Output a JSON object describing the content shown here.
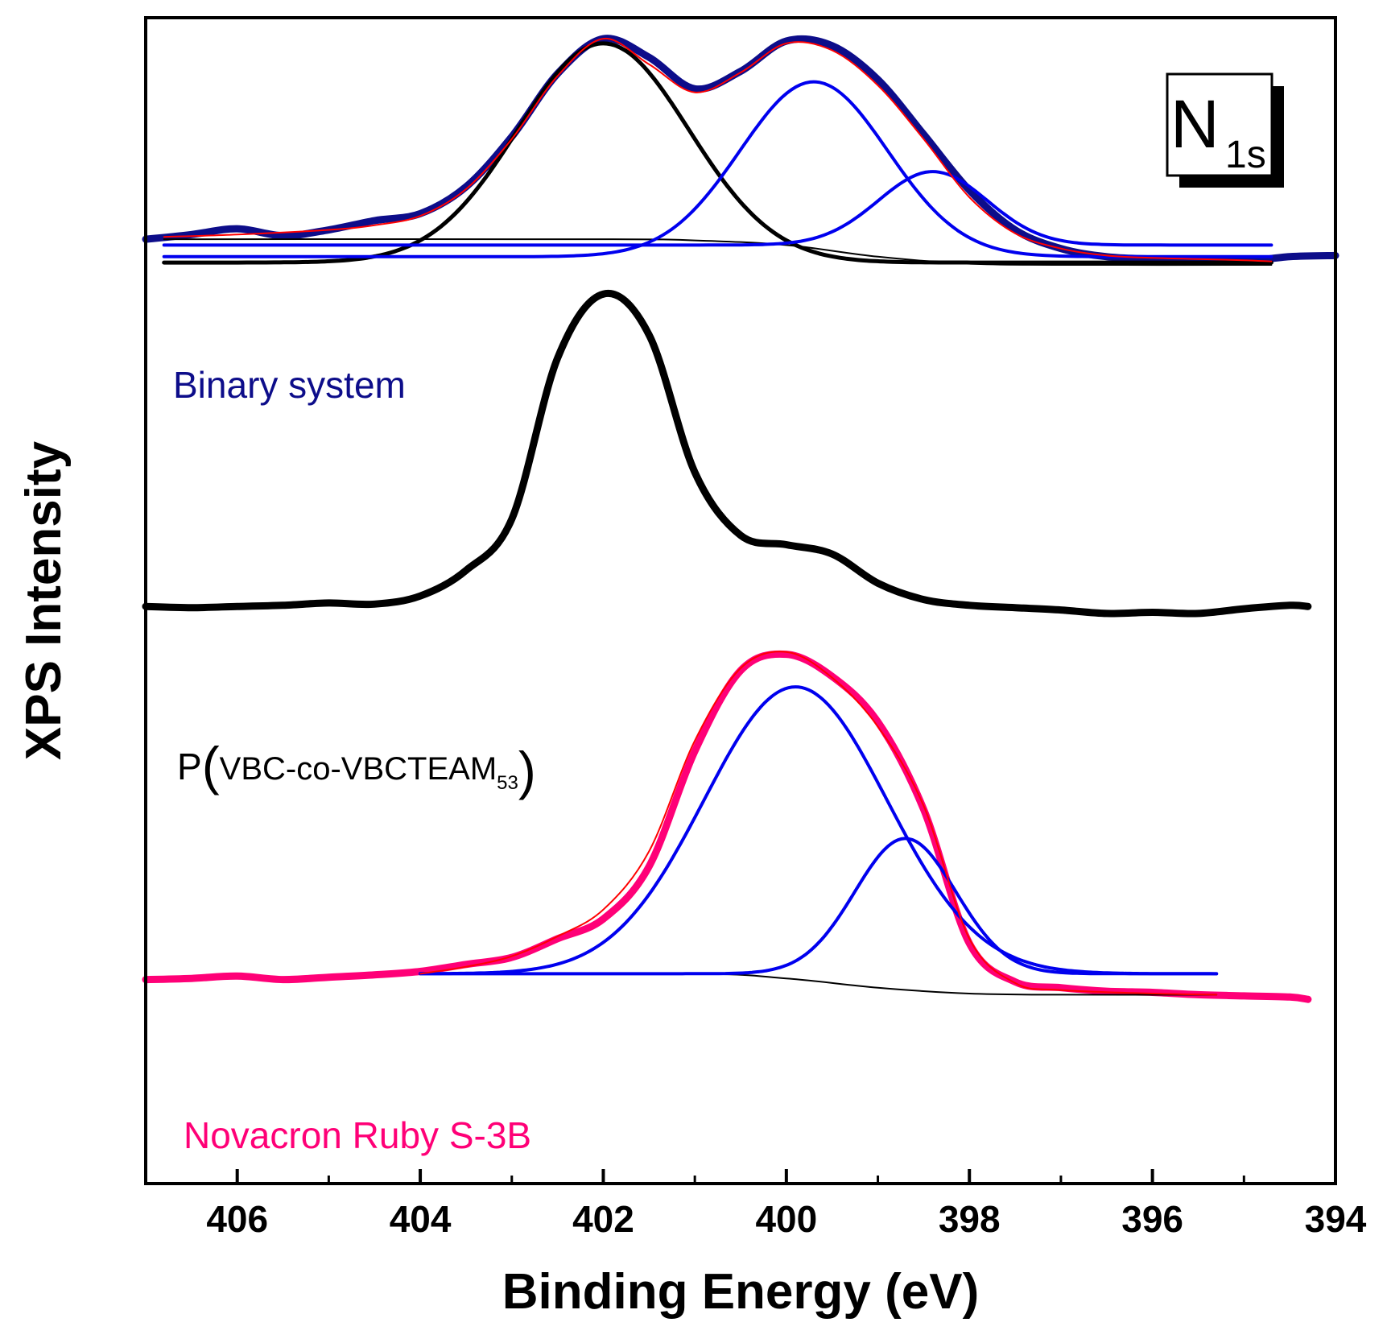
{
  "chart_data": {
    "type": "line",
    "title": "",
    "xlabel": "Binding Energy (eV)",
    "ylabel": "XPS Intensity",
    "xlim": [
      407,
      394
    ],
    "x_reversed": true,
    "xticks": [
      406,
      404,
      402,
      400,
      398,
      396,
      394
    ],
    "ylim": [
      0,
      100
    ],
    "yticks_shown": false,
    "grid": false,
    "badge": {
      "main": "N",
      "sub": "1s"
    },
    "panels": [
      {
        "label": "Binary system",
        "color": "#0d0d8a",
        "data": {
          "name": "Binary system (measured)",
          "x": [
            407.0,
            406.5,
            406.0,
            405.5,
            405.0,
            404.5,
            404.0,
            403.5,
            403.0,
            402.5,
            402.0,
            401.5,
            401.0,
            400.5,
            400.0,
            399.5,
            399.0,
            398.5,
            398.0,
            397.5,
            397.0,
            396.5,
            396.0,
            395.5,
            395.0,
            394.5,
            394.0
          ],
          "y": [
            81.0,
            81.4,
            81.9,
            81.3,
            81.8,
            82.6,
            83.2,
            85.5,
            89.8,
            95.2,
            98.2,
            96.6,
            93.9,
            95.4,
            98.0,
            97.6,
            94.7,
            90.0,
            85.2,
            81.8,
            80.2,
            79.5,
            79.3,
            79.2,
            79.1,
            79.5,
            79.6
          ]
        },
        "envelope": {
          "name": "Binary system envelope fit",
          "color": "#ff0000",
          "x": [
            406.8,
            406.0,
            405.0,
            404.5,
            404.0,
            403.5,
            403.0,
            402.5,
            402.0,
            401.5,
            401.0,
            400.5,
            400.0,
            399.5,
            399.0,
            398.5,
            398.0,
            397.5,
            397.0,
            396.5,
            396.0,
            395.5,
            395.0,
            394.7
          ],
          "y": [
            81.2,
            81.4,
            81.8,
            82.2,
            83.0,
            85.3,
            89.6,
            95.0,
            98.2,
            96.0,
            93.6,
            95.3,
            97.8,
            97.2,
            94.2,
            89.6,
            84.6,
            81.5,
            80.2,
            79.6,
            79.4,
            79.3,
            79.2,
            79.1
          ]
        },
        "components": [
          {
            "name": "Peak 402.0 eV",
            "color": "#000000",
            "center": 402.0,
            "height": 97.8,
            "baseline": 79.0,
            "fwhm": 2.2,
            "xrange": [
              406.8,
              394.7
            ]
          },
          {
            "name": "Peak 399.7 eV",
            "color": "#0000ee",
            "center": 399.7,
            "height": 94.5,
            "baseline": 79.5,
            "fwhm": 1.9,
            "xrange": [
              406.8,
              394.7
            ]
          },
          {
            "name": "Peak 398.4 eV",
            "color": "#0000ee",
            "center": 398.4,
            "height": 86.8,
            "baseline": 80.5,
            "fwhm": 1.4,
            "xrange": [
              406.8,
              394.7
            ]
          }
        ],
        "baseline": {
          "name": "Shirley background",
          "color": "#000000",
          "x": [
            406.8,
            402.0,
            401.0,
            400.0,
            399.0,
            398.0,
            397.0,
            394.7
          ],
          "y": [
            81.0,
            81.0,
            80.9,
            80.5,
            79.5,
            78.9,
            78.8,
            78.8
          ]
        }
      },
      {
        "label": "P(VBC-co-VBCTEAM53)",
        "label_parts": {
          "prefix": "P",
          "body": "VBC-co-VBCTEAM",
          "sub": "53"
        },
        "color": "#000000",
        "data": {
          "name": "P(VBC-co-VBCTEAM53) (measured)",
          "x": [
            407.0,
            406.5,
            406.0,
            405.5,
            405.0,
            404.5,
            404.0,
            403.5,
            403.0,
            402.5,
            402.0,
            401.5,
            401.0,
            400.5,
            400.0,
            399.5,
            399.0,
            398.5,
            398.0,
            397.5,
            397.0,
            396.5,
            396.0,
            395.5,
            395.0,
            394.5,
            394.3
          ],
          "y": [
            49.5,
            49.4,
            49.5,
            49.6,
            49.8,
            49.7,
            50.4,
            52.6,
            57.0,
            70.8,
            76.3,
            72.8,
            61.0,
            55.6,
            54.8,
            54.0,
            51.5,
            50.1,
            49.6,
            49.4,
            49.2,
            48.9,
            49.0,
            48.9,
            49.3,
            49.6,
            49.5
          ]
        }
      },
      {
        "label": "Novacron Ruby S-3B",
        "color": "#ff0077",
        "data": {
          "name": "Novacron Ruby S-3B (measured)",
          "x": [
            407.0,
            406.5,
            406.0,
            405.5,
            405.0,
            404.5,
            404.0,
            403.5,
            403.0,
            402.5,
            402.0,
            401.5,
            401.0,
            400.5,
            400.0,
            399.5,
            399.0,
            398.5,
            398.0,
            397.5,
            397.0,
            396.5,
            396.0,
            395.5,
            395.0,
            394.5,
            394.3
          ],
          "y": [
            17.5,
            17.6,
            17.8,
            17.5,
            17.7,
            17.9,
            18.2,
            18.8,
            19.4,
            21.0,
            22.7,
            27.2,
            37.1,
            44.0,
            45.4,
            43.5,
            39.6,
            32.1,
            20.6,
            17.3,
            16.8,
            16.5,
            16.4,
            16.2,
            16.1,
            16.0,
            15.8
          ]
        },
        "envelope": {
          "name": "Novacron envelope fit",
          "color": "#ff0000",
          "x": [
            404.0,
            403.5,
            403.0,
            402.5,
            402.0,
            401.5,
            401.0,
            400.5,
            400.0,
            399.5,
            399.0,
            398.5,
            398.0,
            397.5,
            397.0,
            396.0,
            395.3
          ],
          "y": [
            18.0,
            18.6,
            19.5,
            21.2,
            23.5,
            28.5,
            38.0,
            44.2,
            45.6,
            43.4,
            39.2,
            32.4,
            21.0,
            17.2,
            16.6,
            16.3,
            16.2
          ]
        },
        "components": [
          {
            "name": "Peak 399.9 eV",
            "color": "#0000ee",
            "center": 399.9,
            "height": 42.6,
            "baseline": 18.0,
            "fwhm": 2.35,
            "xrange": [
              404.0,
              395.3
            ]
          },
          {
            "name": "Peak 398.7 eV",
            "color": "#0000ee",
            "center": 398.7,
            "height": 29.6,
            "baseline": 18.0,
            "fwhm": 1.3,
            "xrange": [
              404.0,
              395.3
            ]
          }
        ],
        "baseline": {
          "name": "Shirley background",
          "color": "#000000",
          "x": [
            404.0,
            401.0,
            400.0,
            399.0,
            398.0,
            397.0,
            395.3
          ],
          "y": [
            18.0,
            18.0,
            17.6,
            16.8,
            16.3,
            16.2,
            16.2
          ]
        }
      }
    ]
  }
}
